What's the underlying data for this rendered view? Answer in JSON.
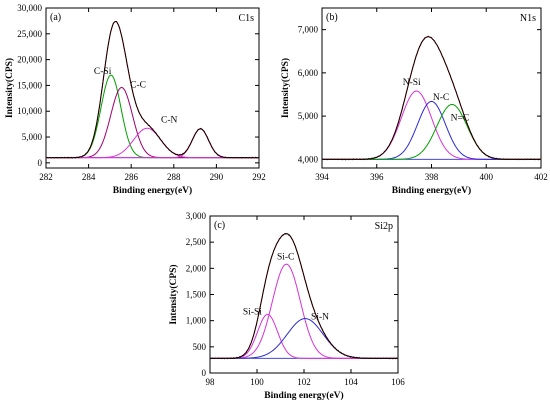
{
  "chart_data": [
    {
      "type": "line",
      "panel_label": "(a)",
      "corner_label": "C1s",
      "xlabel": "Binding energy(eV)",
      "ylabel": "Intensity(CPS)",
      "xlim": [
        282,
        292
      ],
      "ylim": [
        -1000,
        30000
      ],
      "xticks": [
        282,
        284,
        286,
        288,
        290,
        292
      ],
      "yticks": [
        0,
        5000,
        10000,
        15000,
        20000,
        25000,
        30000
      ],
      "ytick_labels": [
        "0",
        "5,000",
        "10,000",
        "15,000",
        "20,000",
        "25,000",
        "30,000"
      ],
      "baseline": 1000,
      "series": [
        {
          "name": "C-Si",
          "color": "#00a000",
          "center": 285.05,
          "height": 16000,
          "fwhm": 1.1
        },
        {
          "name": "C-C",
          "color": "#a0006e",
          "center": 285.55,
          "height": 13600,
          "fwhm": 1.2
        },
        {
          "name": "C-N",
          "color": "#d633d6",
          "center": 286.75,
          "height": 5700,
          "fwhm": 1.5
        },
        {
          "name": "",
          "color": "#d633d6",
          "center": 289.25,
          "height": 5600,
          "fwhm": 0.9
        }
      ],
      "annotations": [
        {
          "text": "C-Si",
          "x": 284.25,
          "y": 17200
        },
        {
          "text": "C-C",
          "x": 285.95,
          "y": 14600
        },
        {
          "text": "C-N",
          "x": 287.4,
          "y": 7800
        }
      ]
    },
    {
      "type": "line",
      "panel_label": "(b)",
      "corner_label": "N1s",
      "xlabel": "Binding energy(eV)",
      "ylabel": "Intensity(CPS)",
      "xlim": [
        394,
        402
      ],
      "ylim": [
        3800,
        7500
      ],
      "xticks": [
        394,
        396,
        398,
        400,
        402
      ],
      "yticks": [
        4000,
        5000,
        6000,
        7000
      ],
      "ytick_labels": [
        "4,000",
        "5,000",
        "6,000",
        "7,000"
      ],
      "baseline": 4000,
      "series": [
        {
          "name": "N-Si",
          "color": "#d633d6",
          "center": 397.45,
          "height": 1580,
          "fwhm": 1.3
        },
        {
          "name": "N-C",
          "color": "#2a2ad6",
          "center": 398.0,
          "height": 1340,
          "fwhm": 1.2
        },
        {
          "name": "N=C",
          "color": "#00a000",
          "center": 398.75,
          "height": 1270,
          "fwhm": 1.3
        }
      ],
      "annotations": [
        {
          "text": "N-Si",
          "x": 396.95,
          "y": 5720
        },
        {
          "text": "N-C",
          "x": 398.05,
          "y": 5370
        },
        {
          "text": "N=C",
          "x": 398.7,
          "y": 4900
        }
      ]
    },
    {
      "type": "line",
      "panel_label": "(c)",
      "corner_label": "Si2p",
      "xlabel": "Binding energy(eV)",
      "ylabel": "Intensity(CPS)",
      "xlim": [
        98,
        106
      ],
      "ylim": [
        0,
        3000
      ],
      "xticks": [
        98,
        100,
        102,
        104,
        106
      ],
      "yticks": [
        0,
        500,
        1000,
        1500,
        2000,
        2500,
        3000
      ],
      "ytick_labels": [
        "0",
        "500",
        "1,000",
        "1,500",
        "2,000",
        "2,500",
        "3,000"
      ],
      "baseline": 280,
      "series": [
        {
          "name": "Si-Si",
          "color": "#d633d6",
          "center": 100.45,
          "height": 840,
          "fwhm": 1.0
        },
        {
          "name": "Si-C",
          "color": "#d633d6",
          "center": 101.25,
          "height": 1800,
          "fwhm": 1.4
        },
        {
          "name": "Si-N",
          "color": "#2a2ad6",
          "center": 102.05,
          "height": 760,
          "fwhm": 1.8
        }
      ],
      "annotations": [
        {
          "text": "Si-Si",
          "x": 99.4,
          "y": 1120
        },
        {
          "text": "Si-C",
          "x": 100.85,
          "y": 2170
        },
        {
          "text": "Si-N",
          "x": 102.3,
          "y": 1020
        }
      ]
    }
  ]
}
